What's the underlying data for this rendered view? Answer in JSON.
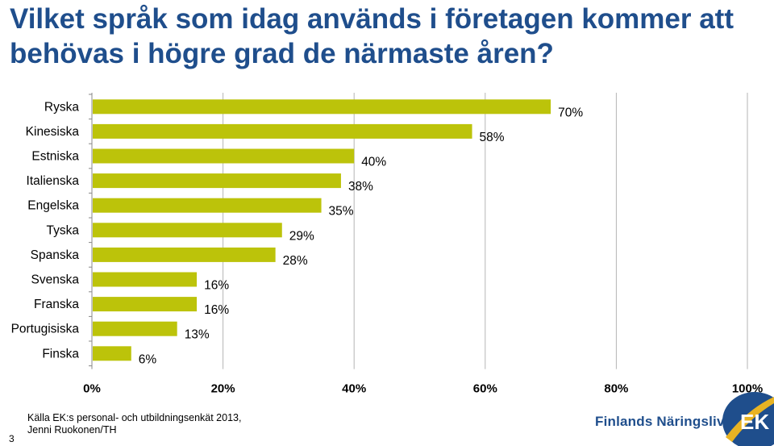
{
  "title": "Vilket språk som idag används i företagen kommer att behövas i högre grad de närmaste åren?",
  "chart_data": {
    "type": "bar",
    "orientation": "horizontal",
    "categories": [
      "Ryska",
      "Kinesiska",
      "Estniska",
      "Italienska",
      "Engelska",
      "Tyska",
      "Spanska",
      "Svenska",
      "Franska",
      "Portugisiska",
      "Finska"
    ],
    "values": [
      70,
      58,
      40,
      38,
      35,
      29,
      28,
      16,
      16,
      13,
      6
    ],
    "value_labels": [
      "70%",
      "58%",
      "40%",
      "38%",
      "35%",
      "29%",
      "28%",
      "16%",
      "16%",
      "13%",
      "6%"
    ],
    "xlim": [
      0,
      100
    ],
    "xticks": [
      "0%",
      "20%",
      "40%",
      "60%",
      "80%",
      "100%"
    ],
    "bar_color": "#bcc30a",
    "grid": true
  },
  "footer": {
    "source_line1": "Källa EK:s personal- och utbildningsenkät 2013,",
    "source_line2": "Jenni Ruokonen/TH",
    "page_number": "3"
  },
  "logo": {
    "name": "Finlands Näringsliv",
    "mark": "EK",
    "colors": {
      "blue": "#1f4e8c",
      "gold": "#e8b323"
    }
  }
}
